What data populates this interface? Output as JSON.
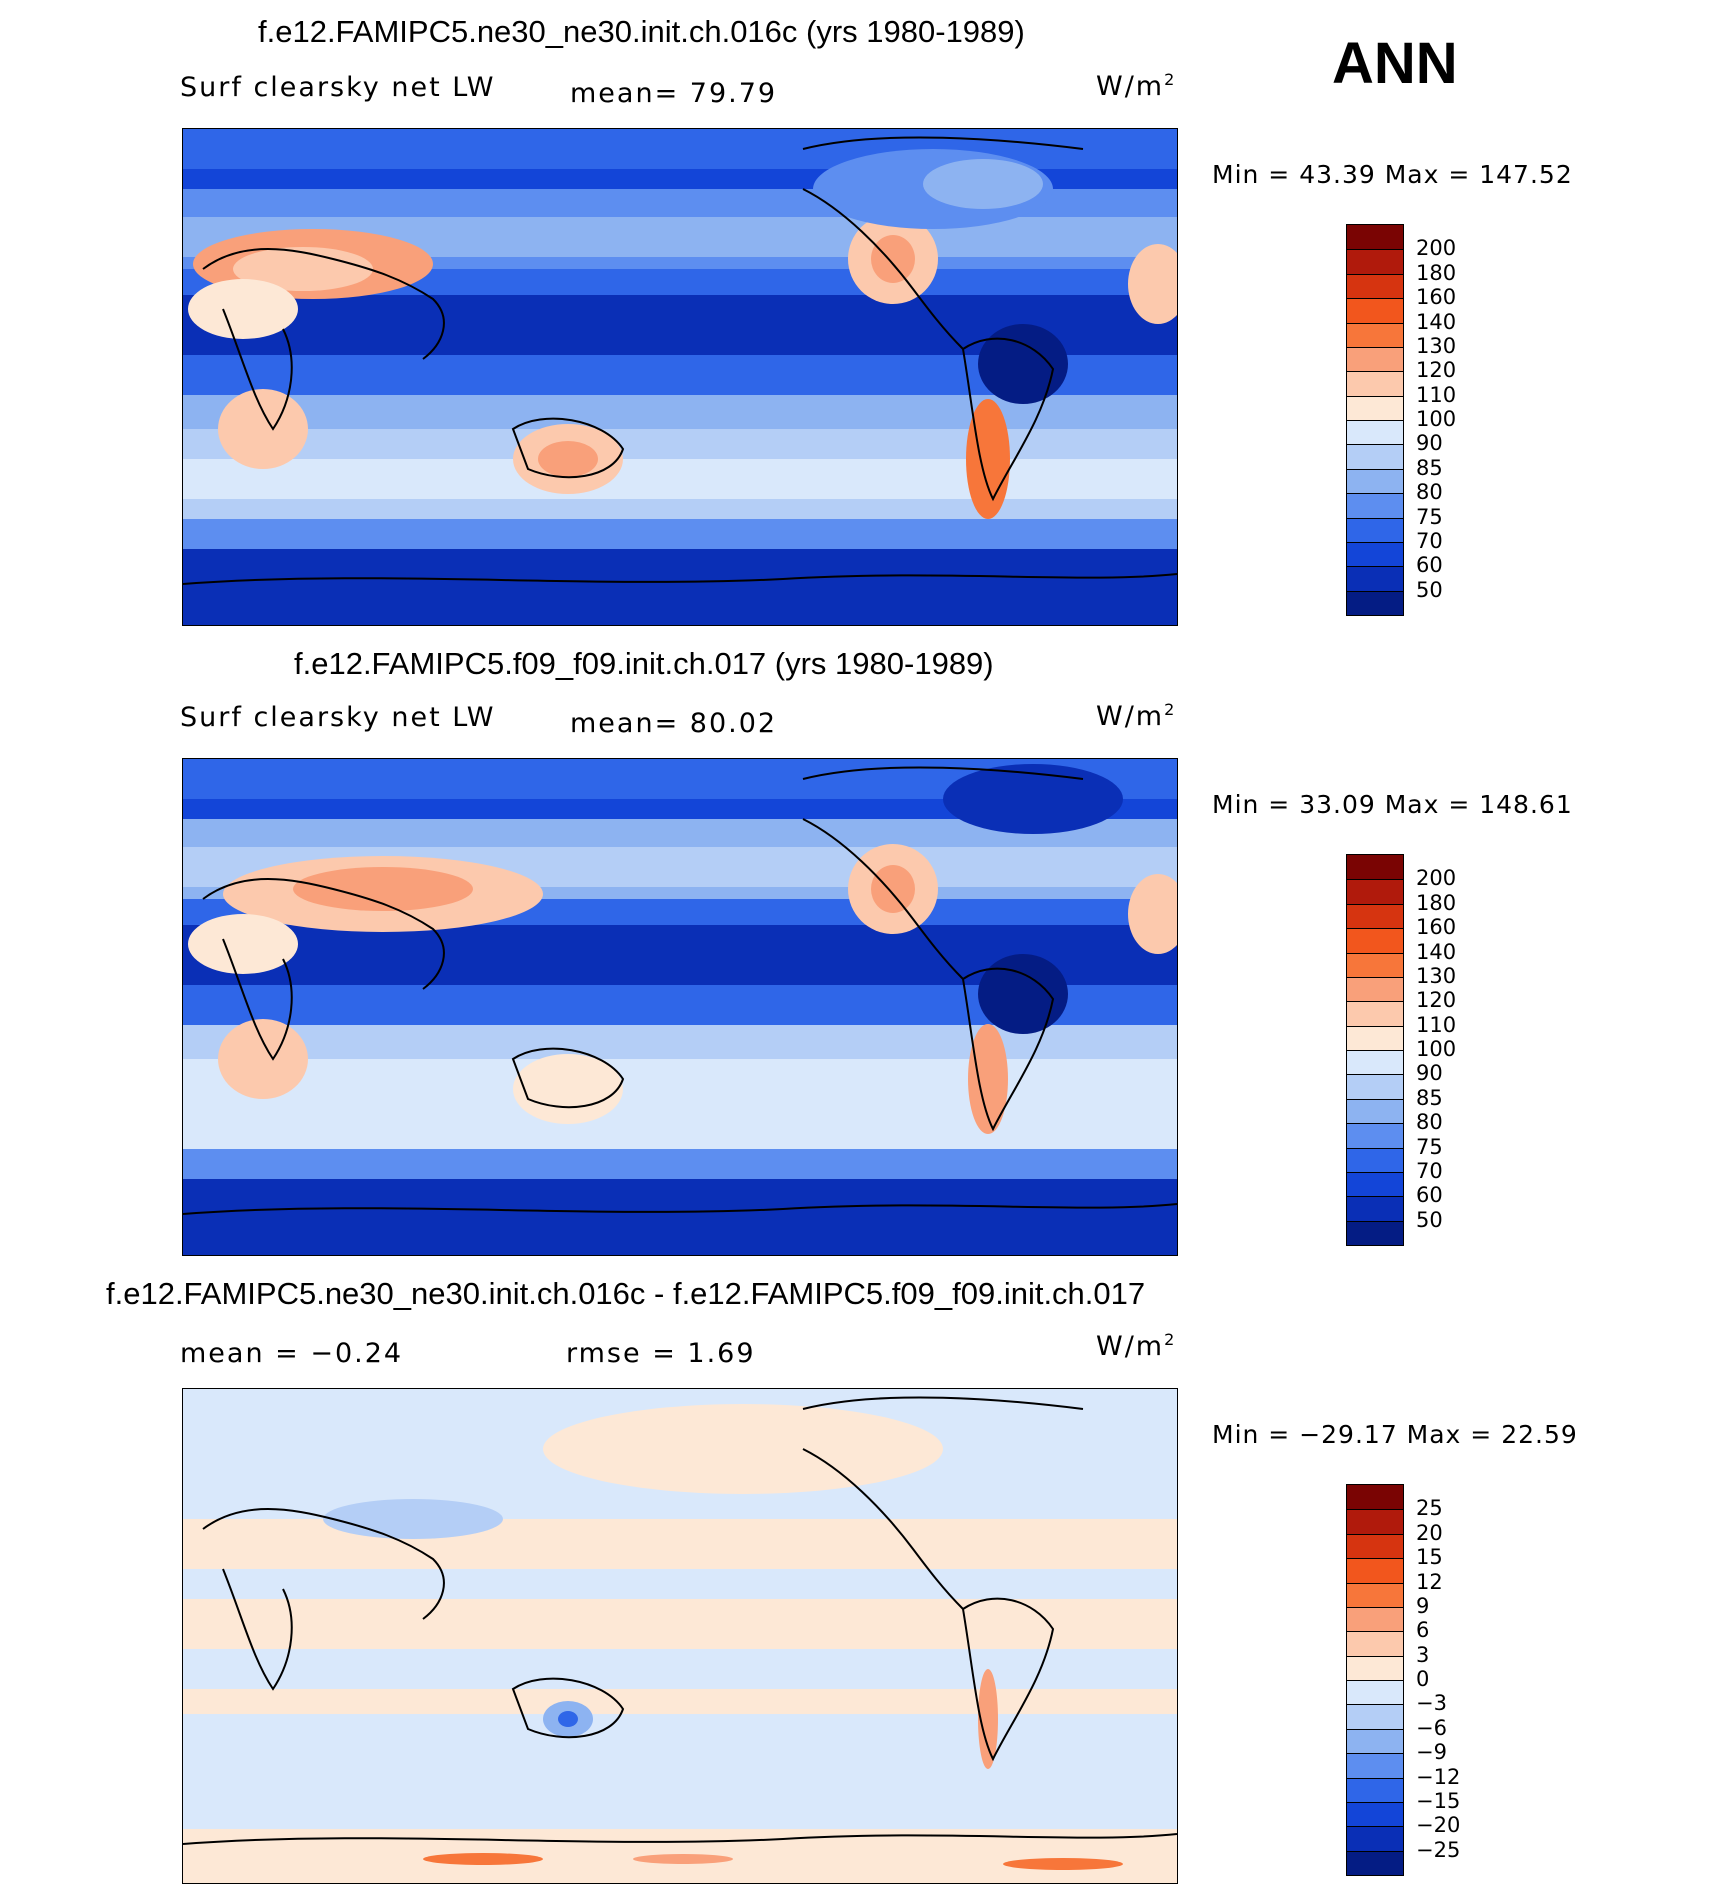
{
  "season": "ANN",
  "panels": [
    {
      "title": "f.e12.FAMIPC5.ne30_ne30.init.ch.016c (yrs 1980-1989)",
      "variable": "Surf clearsky net LW",
      "stat1": "mean=   79.79",
      "stat2": "",
      "units_base": "W/m",
      "units_exp": "2",
      "minmax": "Min =   43.39  Max  =  147.52",
      "colorbar": {
        "levels": [
          "200",
          "180",
          "160",
          "140",
          "130",
          "120",
          "110",
          "100",
          "90",
          "85",
          "80",
          "75",
          "70",
          "60",
          "50"
        ],
        "colors": [
          "#7a0403",
          "#b01a0c",
          "#d63410",
          "#f2561d",
          "#f7763a",
          "#f9a07a",
          "#fcc9ad",
          "#fde8d6",
          "#d9e8fb",
          "#b4cef6",
          "#8db3f1",
          "#5d8ef0",
          "#2f66e8",
          "#1345d8",
          "#0a2fb6",
          "#041c84"
        ]
      }
    },
    {
      "title": "f.e12.FAMIPC5.f09_f09.init.ch.017 (yrs 1980-1989)",
      "variable": "Surf clearsky net LW",
      "stat1": "mean=   80.02",
      "stat2": "",
      "units_base": "W/m",
      "units_exp": "2",
      "minmax": "Min =   33.09  Max  =  148.61",
      "colorbar": {
        "levels": [
          "200",
          "180",
          "160",
          "140",
          "130",
          "120",
          "110",
          "100",
          "90",
          "85",
          "80",
          "75",
          "70",
          "60",
          "50"
        ],
        "colors": [
          "#7a0403",
          "#b01a0c",
          "#d63410",
          "#f2561d",
          "#f7763a",
          "#f9a07a",
          "#fcc9ad",
          "#fde8d6",
          "#d9e8fb",
          "#b4cef6",
          "#8db3f1",
          "#5d8ef0",
          "#2f66e8",
          "#1345d8",
          "#0a2fb6",
          "#041c84"
        ]
      }
    },
    {
      "title": "f.e12.FAMIPC5.ne30_ne30.init.ch.016c - f.e12.FAMIPC5.f09_f09.init.ch.017",
      "variable": "",
      "stat1": "mean =   −0.24",
      "stat2": "rmse =     1.69",
      "units_base": "W/m",
      "units_exp": "2",
      "minmax": "Min = −29.17  Max =   22.59",
      "colorbar": {
        "levels": [
          "25",
          "20",
          "15",
          "12",
          "9",
          "6",
          "3",
          "0",
          "−3",
          "−6",
          "−9",
          "−12",
          "−15",
          "−20",
          "−25"
        ],
        "colors": [
          "#7a0403",
          "#b01a0c",
          "#d63410",
          "#f2561d",
          "#f7763a",
          "#f9a07a",
          "#fcc9ad",
          "#fde8d6",
          "#d9e8fb",
          "#b4cef6",
          "#8db3f1",
          "#5d8ef0",
          "#2f66e8",
          "#1345d8",
          "#0a2fb6",
          "#041c84"
        ]
      }
    }
  ]
}
